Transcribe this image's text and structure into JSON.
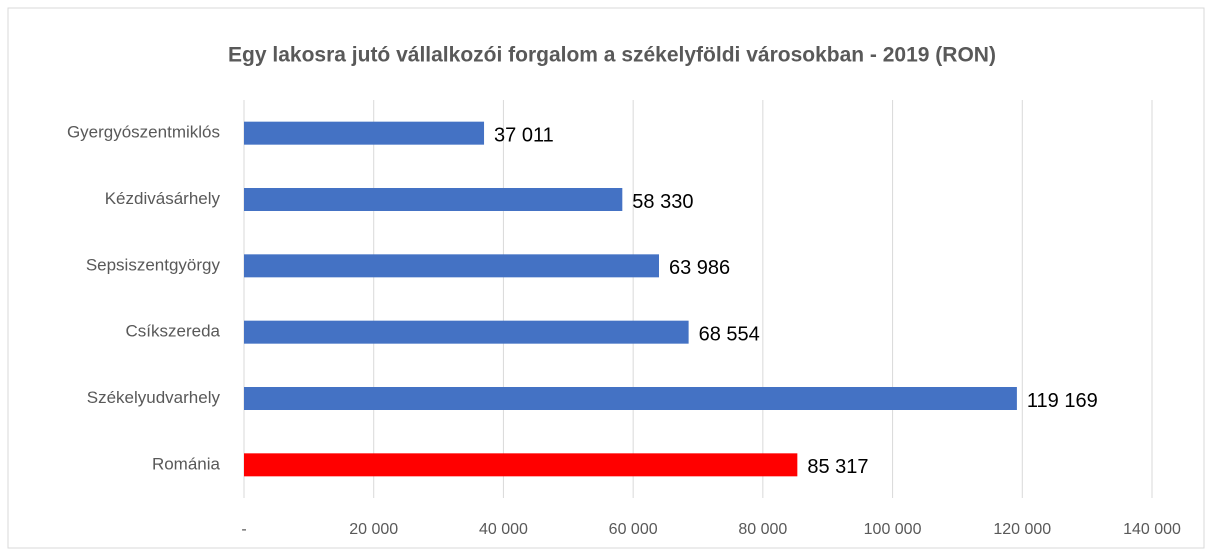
{
  "chart_data": {
    "type": "bar",
    "orientation": "horizontal",
    "title": "Egy lakosra jutó vállalkozói forgalom a székelyföldi városokban - 2019 (RON)",
    "categories": [
      "Gyergyószentmiklós",
      "Kézdivásárhely",
      "Sepsiszentgyörgy",
      "Csíkszereda",
      "Székelyudvarhely",
      "Románia"
    ],
    "values": [
      37011,
      58330,
      63986,
      68554,
      119169,
      85317
    ],
    "value_labels": [
      "37 011",
      "58 330",
      "63 986",
      "68 554",
      "119 169",
      "85 317"
    ],
    "colors": [
      "#4472c4",
      "#4472c4",
      "#4472c4",
      "#4472c4",
      "#4472c4",
      "#ff0000"
    ],
    "xlim": [
      0,
      140000
    ],
    "xticks": [
      {
        "value": 0,
        "label": "-"
      },
      {
        "value": 20000,
        "label": "20 000"
      },
      {
        "value": 40000,
        "label": "40 000"
      },
      {
        "value": 60000,
        "label": "60 000"
      },
      {
        "value": 80000,
        "label": "80 000"
      },
      {
        "value": 100000,
        "label": "100 000"
      },
      {
        "value": 120000,
        "label": "120 000"
      },
      {
        "value": 140000,
        "label": "140 000"
      }
    ],
    "grid": true
  }
}
